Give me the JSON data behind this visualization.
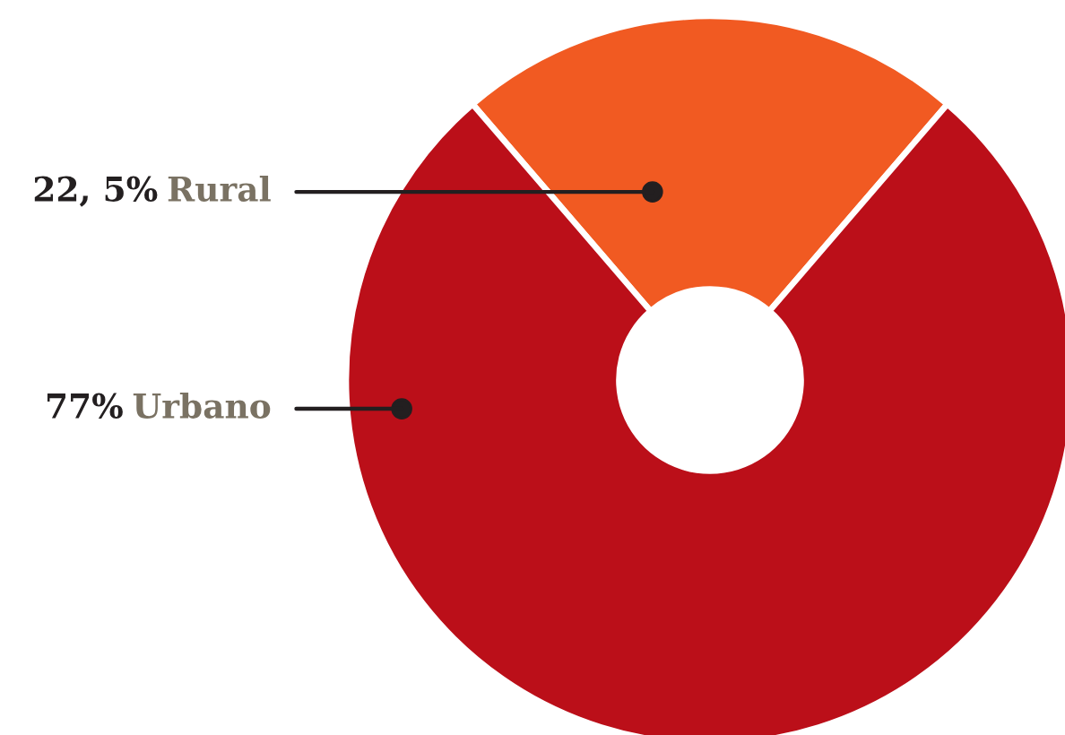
{
  "chart_data": {
    "type": "donut",
    "categories": [
      "Rural",
      "Urbano"
    ],
    "values": [
      22.5,
      77
    ],
    "value_labels": [
      "22, 5%",
      "77%"
    ],
    "colors": [
      "#f15a22",
      "#bb0f19"
    ]
  }
}
